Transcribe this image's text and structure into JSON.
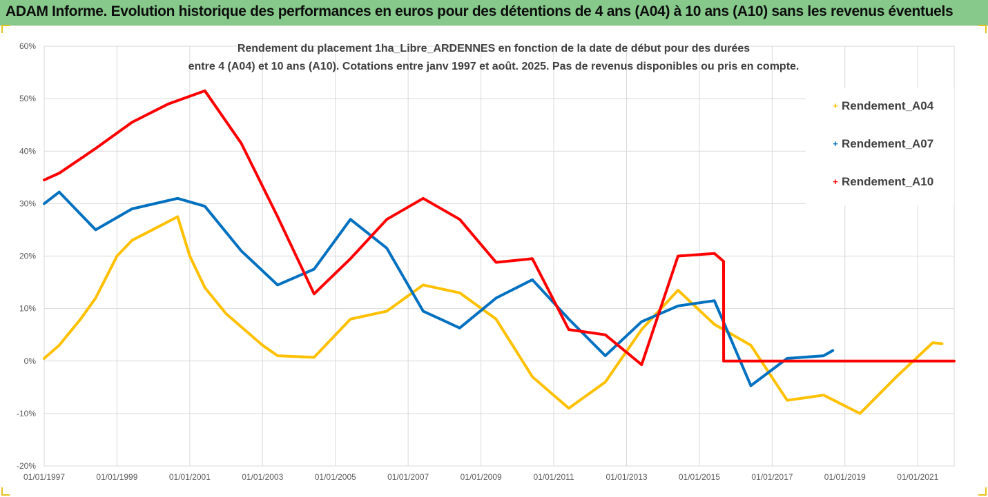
{
  "banner": {
    "title": "ADAM Informe. Evolution historique des performances en euros pour des détentions de 4 ans (A04) à 10 ans (A10) sans les revenus éventuels"
  },
  "chart_data": {
    "type": "line",
    "title_line1": "Rendement du placement 1ha_Libre_ARDENNES en fonction de la date de début pour des durées",
    "title_line2": "entre 4 (A04) et 10 ans (A10). Cotations entre janv 1997 et août. 2025. Pas de revenus disponibles ou pris en compte.",
    "xlabel": "",
    "ylabel": "",
    "x_tick_labels": [
      "01/01/1997",
      "01/01/1999",
      "01/01/2001",
      "01/01/2003",
      "01/01/2005",
      "01/01/2007",
      "01/01/2009",
      "01/01/2011",
      "01/01/2013",
      "01/01/2015",
      "01/01/2017",
      "01/01/2019",
      "01/01/2021"
    ],
    "y_tick_labels": [
      "60%",
      "50%",
      "40%",
      "30%",
      "20%",
      "10%",
      "0%",
      "-10%",
      "-20%"
    ],
    "xlim": [
      "1997-01-01",
      "2022-01-01"
    ],
    "ylim": [
      -20,
      60
    ],
    "grid": true,
    "legend_position": "right",
    "series": [
      {
        "name": "Rendement_A04",
        "color": "#ffc000",
        "points": [
          [
            "1997-01-01",
            0.5
          ],
          [
            "1997-06-01",
            3
          ],
          [
            "1998-01-01",
            8
          ],
          [
            "1998-06-01",
            12
          ],
          [
            "1999-01-01",
            20
          ],
          [
            "1999-06-01",
            23
          ],
          [
            "2000-09-01",
            27.5
          ],
          [
            "2001-01-01",
            20
          ],
          [
            "2001-06-01",
            14
          ],
          [
            "2002-01-01",
            9
          ],
          [
            "2003-01-01",
            3
          ],
          [
            "2003-06-01",
            1
          ],
          [
            "2004-06-01",
            0.7
          ],
          [
            "2005-06-01",
            8
          ],
          [
            "2006-06-01",
            9.5
          ],
          [
            "2007-06-01",
            14.5
          ],
          [
            "2008-06-01",
            13
          ],
          [
            "2009-06-01",
            8
          ],
          [
            "2010-06-01",
            -3
          ],
          [
            "2011-06-01",
            -9
          ],
          [
            "2012-06-01",
            -4
          ],
          [
            "2013-06-01",
            6
          ],
          [
            "2014-06-01",
            13.5
          ],
          [
            "2015-06-01",
            7
          ],
          [
            "2016-06-01",
            3
          ],
          [
            "2017-06-01",
            -7.5
          ],
          [
            "2018-06-01",
            -6.5
          ],
          [
            "2019-06-01",
            -10
          ],
          [
            "2020-06-01",
            -3
          ],
          [
            "2021-06-01",
            3.5
          ],
          [
            "2021-09-01",
            3.3
          ]
        ]
      },
      {
        "name": "Rendement_A07",
        "color": "#0070c0",
        "points": [
          [
            "1997-01-01",
            30
          ],
          [
            "1997-06-01",
            32.2
          ],
          [
            "1998-06-01",
            25
          ],
          [
            "1999-06-01",
            29
          ],
          [
            "2000-09-01",
            31
          ],
          [
            "2001-06-01",
            29.5
          ],
          [
            "2002-06-01",
            21
          ],
          [
            "2003-06-01",
            14.5
          ],
          [
            "2004-06-01",
            17.5
          ],
          [
            "2005-06-01",
            27
          ],
          [
            "2006-06-01",
            21.5
          ],
          [
            "2007-06-01",
            9.5
          ],
          [
            "2008-06-01",
            6.3
          ],
          [
            "2009-06-01",
            12
          ],
          [
            "2010-06-01",
            15.5
          ],
          [
            "2011-06-01",
            8
          ],
          [
            "2012-06-01",
            1
          ],
          [
            "2013-06-01",
            7.5
          ],
          [
            "2014-06-01",
            10.5
          ],
          [
            "2015-06-01",
            11.5
          ],
          [
            "2016-06-01",
            -4.7
          ],
          [
            "2017-06-01",
            0.5
          ],
          [
            "2018-06-01",
            1
          ],
          [
            "2018-09-01",
            2
          ]
        ]
      },
      {
        "name": "Rendement_A10",
        "color": "#ff0000",
        "points": [
          [
            "1997-01-01",
            34.5
          ],
          [
            "1997-06-01",
            35.8
          ],
          [
            "1998-06-01",
            40.5
          ],
          [
            "1999-06-01",
            45.5
          ],
          [
            "2000-06-01",
            49
          ],
          [
            "2001-06-01",
            51.5
          ],
          [
            "2002-06-01",
            41.5
          ],
          [
            "2003-06-01",
            27.5
          ],
          [
            "2004-06-01",
            12.8
          ],
          [
            "2005-06-01",
            19.5
          ],
          [
            "2006-06-01",
            27
          ],
          [
            "2007-06-01",
            31
          ],
          [
            "2008-06-01",
            27
          ],
          [
            "2009-06-01",
            18.8
          ],
          [
            "2010-06-01",
            19.5
          ],
          [
            "2011-06-01",
            6
          ],
          [
            "2012-06-01",
            5
          ],
          [
            "2013-06-01",
            -0.7
          ],
          [
            "2014-06-01",
            20
          ],
          [
            "2015-06-01",
            20.5
          ],
          [
            "2015-09-01",
            19
          ],
          [
            "2015-09-02",
            0
          ],
          [
            "2022-01-01",
            0
          ]
        ]
      }
    ]
  }
}
